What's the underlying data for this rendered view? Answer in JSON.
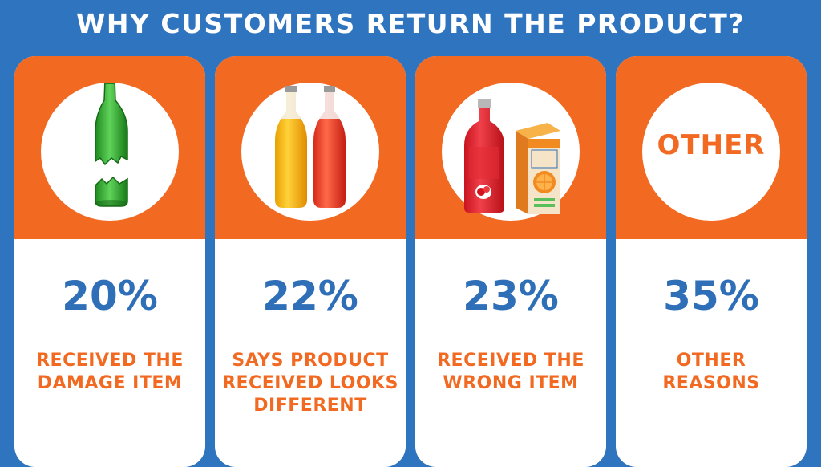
{
  "title": "WHY CUSTOMERS RETURN THE PRODUCT?",
  "colors": {
    "background": "#2f74be",
    "accent": "#f26a22",
    "value": "#2f6fb8"
  },
  "cards": [
    {
      "value": "20%",
      "label": "RECEIVED THE\nDAMAGE ITEM",
      "icon": "broken-bottle-icon"
    },
    {
      "value": "22%",
      "label": "SAYS PRODUCT\nRECEIVED LOOKS\nDIFFERENT",
      "icon": "two-bottles-icon"
    },
    {
      "value": "23%",
      "label": "RECEIVED THE\nWRONG ITEM",
      "icon": "juice-bottle-and-box-icon"
    },
    {
      "value": "35%",
      "label": "OTHER\nREASONS",
      "icon_text": "OTHER"
    }
  ],
  "chart_data": {
    "type": "table",
    "title": "WHY CUSTOMERS RETURN THE PRODUCT?",
    "categories": [
      "RECEIVED THE DAMAGE ITEM",
      "SAYS PRODUCT RECEIVED LOOKS DIFFERENT",
      "RECEIVED THE WRONG ITEM",
      "OTHER REASONS"
    ],
    "values": [
      20,
      22,
      23,
      35
    ],
    "unit": "%"
  }
}
